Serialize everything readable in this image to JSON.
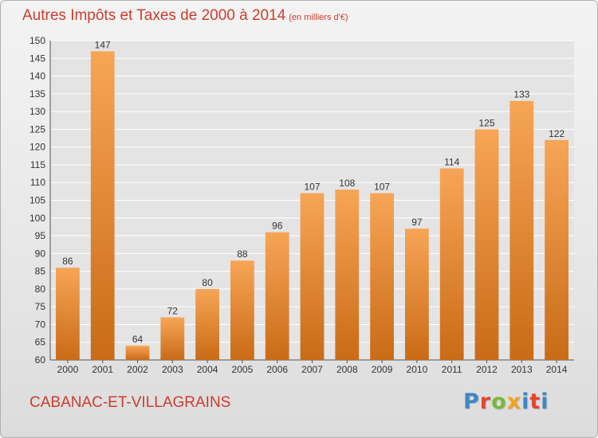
{
  "header": {
    "title": "Autres Impôts et Taxes de 2000 à 2014",
    "unit": "(en milliers d'€)"
  },
  "footer": {
    "commune": "CABANAC-ET-VILLAGRAINS",
    "logo_letters": [
      "P",
      "r",
      "o",
      "x",
      "i",
      "t",
      "i"
    ]
  },
  "colors": {
    "title": "#cc3d2e",
    "bar_light": "#f7a556",
    "bar_dark": "#c96b17",
    "grid": "#ffffff"
  },
  "chart_data": {
    "type": "bar",
    "categories": [
      "2000",
      "2001",
      "2002",
      "2003",
      "2004",
      "2005",
      "2006",
      "2007",
      "2008",
      "2009",
      "2010",
      "2011",
      "2012",
      "2013",
      "2014"
    ],
    "values": [
      86,
      147,
      64,
      72,
      80,
      88,
      96,
      107,
      108,
      107,
      97,
      114,
      125,
      133,
      122
    ],
    "ylim": [
      60,
      150
    ],
    "yticks": [
      60,
      65,
      70,
      75,
      80,
      85,
      90,
      95,
      100,
      105,
      110,
      115,
      120,
      125,
      130,
      135,
      140,
      145,
      150
    ],
    "grid": true,
    "xlabel": "",
    "ylabel": ""
  }
}
